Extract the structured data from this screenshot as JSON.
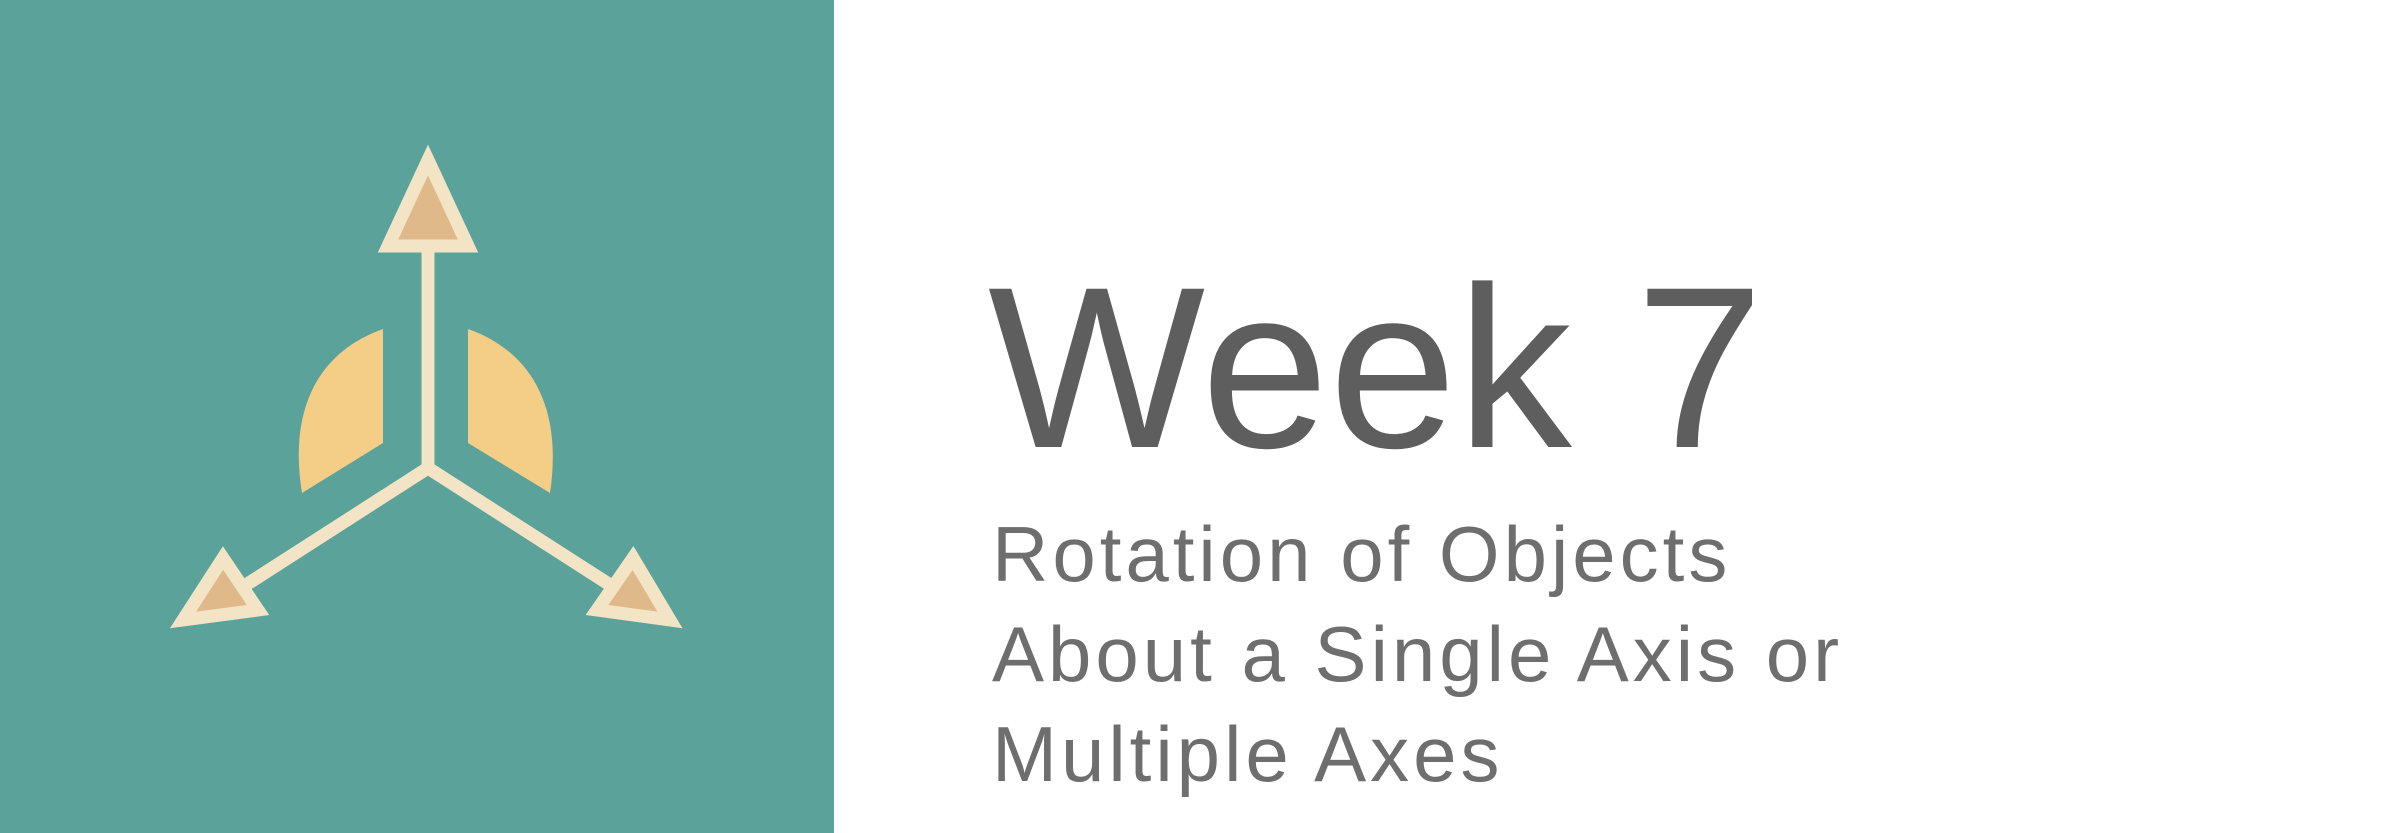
{
  "banner": {
    "title": "Week 7",
    "subtitle_lines": [
      "Rotation of Objects",
      "About a Single Axis or",
      "Multiple Axes"
    ]
  },
  "icon": {
    "name": "rotation-axes-icon",
    "colors": {
      "panel": "#5ba39a",
      "axis": "#f2e4c4",
      "arrow_fill": "#e0b98a",
      "rotation_arc": "#f4cd86"
    }
  },
  "colors": {
    "background": "#ffffff",
    "title": "#5e5e5e",
    "subtitle": "#6e6e6e"
  }
}
